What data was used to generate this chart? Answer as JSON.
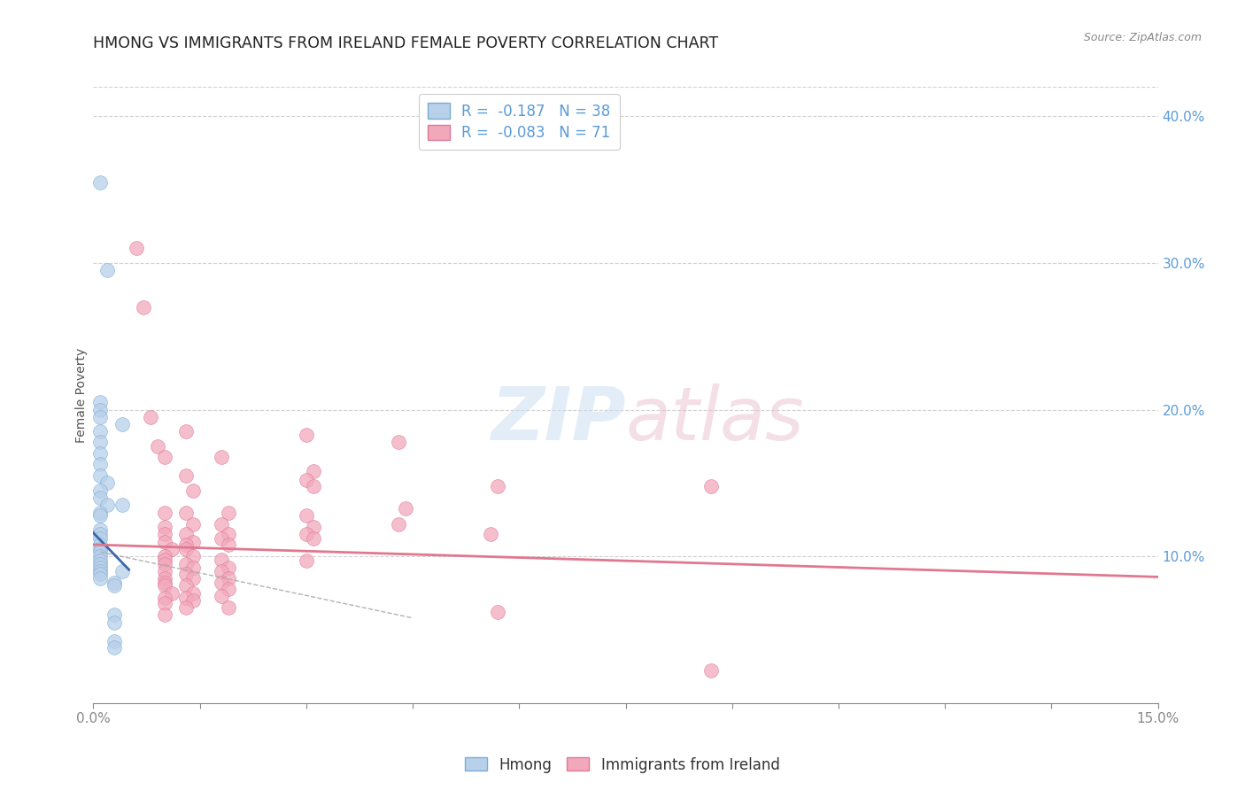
{
  "title": "HMONG VS IMMIGRANTS FROM IRELAND FEMALE POVERTY CORRELATION CHART",
  "source": "Source: ZipAtlas.com",
  "ylabel": "Female Poverty",
  "xlim": [
    0.0,
    0.15
  ],
  "ylim": [
    0.0,
    0.42
  ],
  "x_ticks": [
    0.0,
    0.015,
    0.03,
    0.045,
    0.06,
    0.075,
    0.09,
    0.105,
    0.12,
    0.135,
    0.15
  ],
  "x_tick_labels_visible": [
    "0.0%",
    "",
    "",
    "",
    "",
    "",
    "",
    "",
    "",
    "",
    "15.0%"
  ],
  "y_ticks_right": [
    0.1,
    0.2,
    0.3,
    0.4
  ],
  "y_tick_labels_right": [
    "10.0%",
    "20.0%",
    "30.0%",
    "40.0%"
  ],
  "hmong_color": "#b8d0ea",
  "hmong_edge_color": "#7aadd4",
  "ireland_color": "#f2a8bb",
  "ireland_edge_color": "#e07898",
  "hmong_R": -0.187,
  "hmong_N": 38,
  "ireland_R": -0.083,
  "ireland_N": 71,
  "legend_label_hmong": "Hmong",
  "legend_label_ireland": "Immigrants from Ireland",
  "background_color": "#ffffff",
  "grid_color": "#cccccc",
  "axis_label_color": "#5b9bd5",
  "hmong_line_color": "#3a68ab",
  "ireland_line_color": "#e07890",
  "dashed_line_color": "#aaaaaa",
  "hmong_scatter": [
    [
      0.001,
      0.355
    ],
    [
      0.002,
      0.295
    ],
    [
      0.001,
      0.205
    ],
    [
      0.001,
      0.2
    ],
    [
      0.001,
      0.195
    ],
    [
      0.001,
      0.185
    ],
    [
      0.001,
      0.178
    ],
    [
      0.001,
      0.17
    ],
    [
      0.001,
      0.163
    ],
    [
      0.001,
      0.155
    ],
    [
      0.002,
      0.15
    ],
    [
      0.001,
      0.145
    ],
    [
      0.001,
      0.14
    ],
    [
      0.002,
      0.135
    ],
    [
      0.001,
      0.13
    ],
    [
      0.001,
      0.128
    ],
    [
      0.001,
      0.118
    ],
    [
      0.001,
      0.115
    ],
    [
      0.001,
      0.112
    ],
    [
      0.001,
      0.108
    ],
    [
      0.001,
      0.105
    ],
    [
      0.001,
      0.103
    ],
    [
      0.001,
      0.1
    ],
    [
      0.001,
      0.097
    ],
    [
      0.001,
      0.095
    ],
    [
      0.001,
      0.092
    ],
    [
      0.001,
      0.09
    ],
    [
      0.001,
      0.088
    ],
    [
      0.001,
      0.085
    ],
    [
      0.004,
      0.19
    ],
    [
      0.004,
      0.135
    ],
    [
      0.004,
      0.09
    ],
    [
      0.003,
      0.082
    ],
    [
      0.003,
      0.08
    ],
    [
      0.003,
      0.06
    ],
    [
      0.003,
      0.055
    ],
    [
      0.003,
      0.042
    ],
    [
      0.003,
      0.038
    ]
  ],
  "ireland_scatter": [
    [
      0.006,
      0.31
    ],
    [
      0.007,
      0.27
    ],
    [
      0.008,
      0.195
    ],
    [
      0.009,
      0.175
    ],
    [
      0.01,
      0.168
    ],
    [
      0.01,
      0.13
    ],
    [
      0.01,
      0.12
    ],
    [
      0.01,
      0.115
    ],
    [
      0.01,
      0.11
    ],
    [
      0.011,
      0.105
    ],
    [
      0.01,
      0.1
    ],
    [
      0.01,
      0.098
    ],
    [
      0.01,
      0.095
    ],
    [
      0.01,
      0.09
    ],
    [
      0.01,
      0.085
    ],
    [
      0.01,
      0.082
    ],
    [
      0.01,
      0.08
    ],
    [
      0.011,
      0.075
    ],
    [
      0.01,
      0.072
    ],
    [
      0.01,
      0.068
    ],
    [
      0.01,
      0.06
    ],
    [
      0.013,
      0.185
    ],
    [
      0.013,
      0.155
    ],
    [
      0.014,
      0.145
    ],
    [
      0.013,
      0.13
    ],
    [
      0.014,
      0.122
    ],
    [
      0.013,
      0.115
    ],
    [
      0.014,
      0.11
    ],
    [
      0.013,
      0.108
    ],
    [
      0.013,
      0.105
    ],
    [
      0.014,
      0.1
    ],
    [
      0.013,
      0.095
    ],
    [
      0.014,
      0.092
    ],
    [
      0.013,
      0.088
    ],
    [
      0.014,
      0.085
    ],
    [
      0.013,
      0.08
    ],
    [
      0.014,
      0.075
    ],
    [
      0.013,
      0.072
    ],
    [
      0.014,
      0.07
    ],
    [
      0.013,
      0.065
    ],
    [
      0.018,
      0.168
    ],
    [
      0.019,
      0.13
    ],
    [
      0.018,
      0.122
    ],
    [
      0.019,
      0.115
    ],
    [
      0.018,
      0.112
    ],
    [
      0.019,
      0.108
    ],
    [
      0.018,
      0.098
    ],
    [
      0.019,
      0.092
    ],
    [
      0.018,
      0.09
    ],
    [
      0.019,
      0.085
    ],
    [
      0.018,
      0.082
    ],
    [
      0.019,
      0.078
    ],
    [
      0.018,
      0.073
    ],
    [
      0.019,
      0.065
    ],
    [
      0.03,
      0.183
    ],
    [
      0.031,
      0.158
    ],
    [
      0.03,
      0.152
    ],
    [
      0.031,
      0.148
    ],
    [
      0.03,
      0.128
    ],
    [
      0.031,
      0.12
    ],
    [
      0.03,
      0.115
    ],
    [
      0.031,
      0.112
    ],
    [
      0.03,
      0.097
    ],
    [
      0.043,
      0.178
    ],
    [
      0.044,
      0.133
    ],
    [
      0.043,
      0.122
    ],
    [
      0.057,
      0.148
    ],
    [
      0.056,
      0.115
    ],
    [
      0.087,
      0.148
    ],
    [
      0.057,
      0.062
    ],
    [
      0.087,
      0.022
    ]
  ],
  "hmong_line_x": [
    0.0,
    0.005
  ],
  "hmong_line_y": [
    0.116,
    0.091
  ],
  "ireland_line_x": [
    0.0,
    0.15
  ],
  "ireland_line_y": [
    0.108,
    0.086
  ],
  "dashed_line_x": [
    0.001,
    0.045
  ],
  "dashed_line_y": [
    0.103,
    0.058
  ]
}
